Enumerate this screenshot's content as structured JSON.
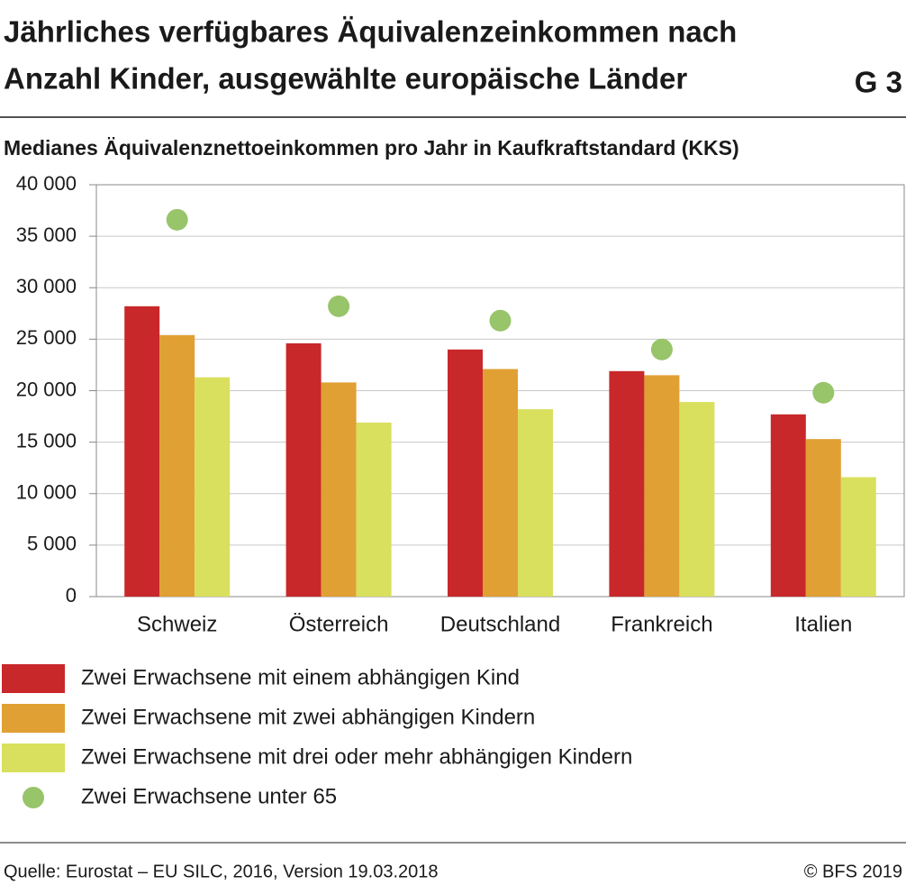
{
  "chart_data": {
    "type": "bar",
    "title": [
      "Jährliches verfügbares Äquivalenzeinkommen nach",
      "Anzahl Kinder, ausgewählte europäische Länder"
    ],
    "figure_label": "G 3",
    "subtitle": "Medianes Äquivalenznettoeinkommen pro Jahr in Kaufkraftstandard (KKS)",
    "categories": [
      "Schweiz",
      "Österreich",
      "Deutschland",
      "Frankreich",
      "Italien"
    ],
    "series": [
      {
        "name": "Zwei Erwachsene mit einem abhängigen Kind",
        "color": "#c8282a",
        "mark": "bar",
        "values": [
          28200,
          24600,
          24000,
          21900,
          17700
        ]
      },
      {
        "name": "Zwei Erwachsene mit zwei abhängigen Kindern",
        "color": "#e0a033",
        "mark": "bar",
        "values": [
          25400,
          20800,
          22100,
          21500,
          15300
        ]
      },
      {
        "name": "Zwei Erwachsene mit drei oder mehr abhängigen Kindern",
        "color": "#d9e05e",
        "mark": "bar",
        "values": [
          21300,
          16900,
          18200,
          18900,
          11600
        ]
      },
      {
        "name": "Zwei Erwachsene unter 65",
        "color": "#98c46a",
        "mark": "dot",
        "values": [
          36600,
          28200,
          26800,
          24000,
          19800
        ]
      }
    ],
    "ylim": [
      0,
      40000
    ],
    "yticks": [
      0,
      {
        "value": 5000,
        "label": "5 000"
      },
      {
        "value": 10000,
        "label": "10 000"
      },
      {
        "value": 15000,
        "label": "15 000"
      },
      {
        "value": 20000,
        "label": "20 000"
      },
      {
        "value": 25000,
        "label": "25 000"
      },
      {
        "value": 30000,
        "label": "30 000"
      },
      {
        "value": 35000,
        "label": "35 000"
      },
      {
        "value": 40000,
        "label": "40 000"
      }
    ],
    "grid": true,
    "source": "Quelle: Eurostat – EU SILC, 2016, Version 19.03.2018",
    "copyright": "© BFS 2019"
  }
}
